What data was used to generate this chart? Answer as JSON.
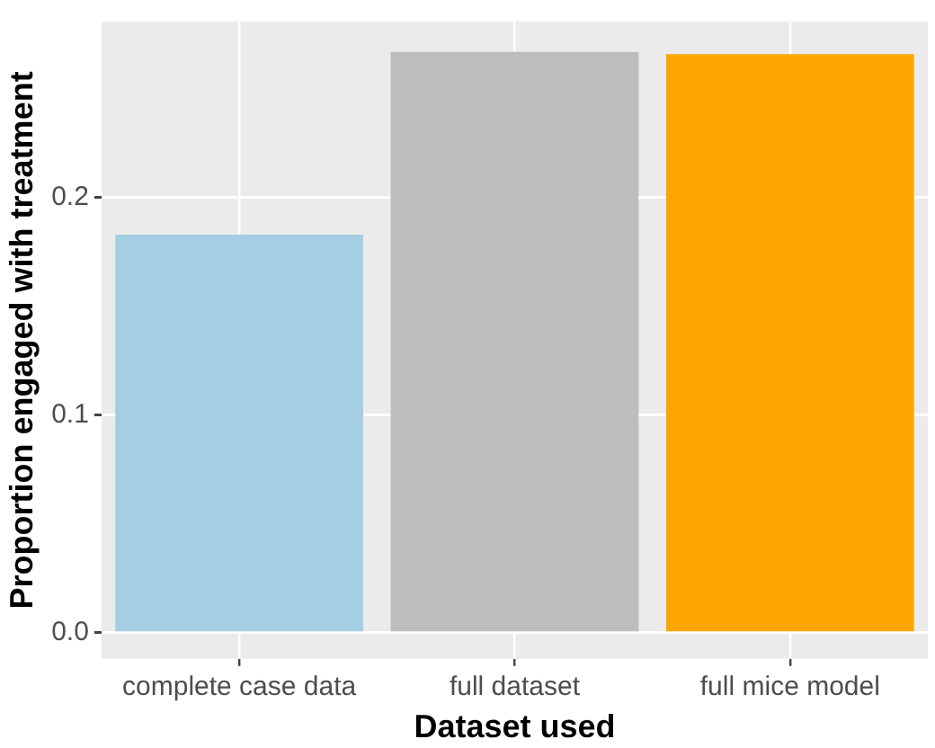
{
  "chart_data": {
    "type": "bar",
    "xlabel": "Dataset used",
    "ylabel": "Proportion engaged with treatment",
    "categories": [
      "complete case data",
      "full dataset",
      "full mice model"
    ],
    "values": [
      0.183,
      0.267,
      0.266
    ],
    "colors": [
      "#a6cee3",
      "#bdbdbd",
      "#ffa500"
    ],
    "ylim": [
      -0.012,
      0.281
    ],
    "yticks": [
      {
        "value": 0,
        "label": "0.0"
      },
      0.1,
      0.2
    ],
    "grid": true
  }
}
